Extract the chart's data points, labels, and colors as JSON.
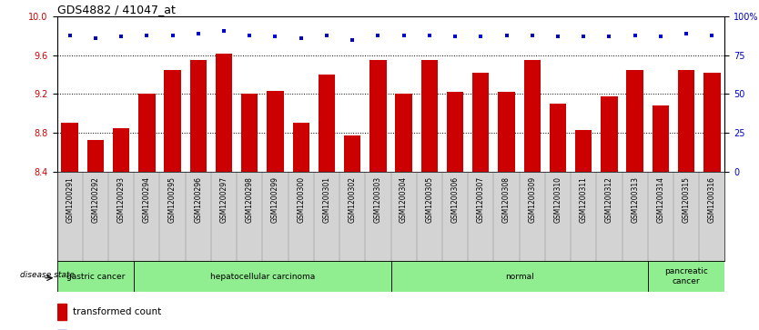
{
  "title": "GDS4882 / 41047_at",
  "samples": [
    "GSM1200291",
    "GSM1200292",
    "GSM1200293",
    "GSM1200294",
    "GSM1200295",
    "GSM1200296",
    "GSM1200297",
    "GSM1200298",
    "GSM1200299",
    "GSM1200300",
    "GSM1200301",
    "GSM1200302",
    "GSM1200303",
    "GSM1200304",
    "GSM1200305",
    "GSM1200306",
    "GSM1200307",
    "GSM1200308",
    "GSM1200309",
    "GSM1200310",
    "GSM1200311",
    "GSM1200312",
    "GSM1200313",
    "GSM1200314",
    "GSM1200315",
    "GSM1200316"
  ],
  "bar_values": [
    8.9,
    8.73,
    8.85,
    9.2,
    9.45,
    9.55,
    9.62,
    9.2,
    9.23,
    8.9,
    9.4,
    8.77,
    9.55,
    9.2,
    9.55,
    9.22,
    9.42,
    9.22,
    9.55,
    9.1,
    8.83,
    9.18,
    9.45,
    9.08,
    9.45,
    9.42
  ],
  "percentile_values": [
    88,
    86,
    87,
    88,
    88,
    89,
    91,
    88,
    87,
    86,
    88,
    85,
    88,
    88,
    88,
    87,
    87,
    88,
    88,
    87,
    87,
    87,
    88,
    87,
    89,
    88
  ],
  "disease_groups": [
    {
      "label": "gastric cancer",
      "start": 0,
      "end": 2,
      "color": "#90EE90"
    },
    {
      "label": "hepatocellular carcinoma",
      "start": 3,
      "end": 12,
      "color": "#90EE90"
    },
    {
      "label": "normal",
      "start": 13,
      "end": 22,
      "color": "#90EE90"
    },
    {
      "label": "pancreatic\ncancer",
      "start": 23,
      "end": 25,
      "color": "#90EE90"
    }
  ],
  "bar_color": "#CC0000",
  "dot_color": "#0000CC",
  "ylim_left": [
    8.4,
    10.0
  ],
  "ylim_right": [
    0,
    100
  ],
  "yticks_left": [
    8.4,
    8.8,
    9.2,
    9.6,
    10.0
  ],
  "yticks_right": [
    0,
    25,
    50,
    75,
    100
  ],
  "ytick_labels_right": [
    "0",
    "25",
    "50",
    "75",
    "100%"
  ],
  "grid_values": [
    8.8,
    9.2,
    9.6
  ],
  "background_color": "#ffffff"
}
